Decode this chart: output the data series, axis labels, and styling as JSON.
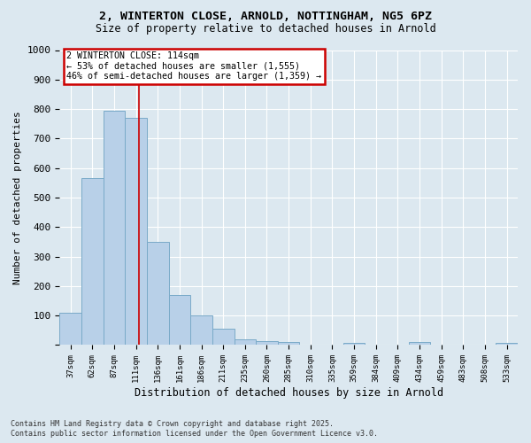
{
  "title_line1": "2, WINTERTON CLOSE, ARNOLD, NOTTINGHAM, NG5 6PZ",
  "title_line2": "Size of property relative to detached houses in Arnold",
  "xlabel": "Distribution of detached houses by size in Arnold",
  "ylabel": "Number of detached properties",
  "categories": [
    "37sqm",
    "62sqm",
    "87sqm",
    "111sqm",
    "136sqm",
    "161sqm",
    "186sqm",
    "211sqm",
    "235sqm",
    "260sqm",
    "285sqm",
    "310sqm",
    "335sqm",
    "359sqm",
    "384sqm",
    "409sqm",
    "434sqm",
    "459sqm",
    "483sqm",
    "508sqm",
    "533sqm"
  ],
  "values": [
    110,
    565,
    795,
    770,
    350,
    170,
    100,
    55,
    18,
    12,
    10,
    0,
    0,
    8,
    0,
    0,
    10,
    0,
    0,
    0,
    8
  ],
  "bar_color": "#b8d0e8",
  "bar_edge_color": "#7aaac8",
  "background_color": "#dce8f0",
  "vline_color": "#cc0000",
  "vline_x": 3.12,
  "annotation_title": "2 WINTERTON CLOSE: 114sqm",
  "annotation_line2": "← 53% of detached houses are smaller (1,555)",
  "annotation_line3": "46% of semi-detached houses are larger (1,359) →",
  "annotation_box_facecolor": "#ffffff",
  "annotation_border_color": "#cc0000",
  "ylim": [
    0,
    1000
  ],
  "yticks": [
    0,
    100,
    200,
    300,
    400,
    500,
    600,
    700,
    800,
    900,
    1000
  ],
  "footnote1": "Contains HM Land Registry data © Crown copyright and database right 2025.",
  "footnote2": "Contains public sector information licensed under the Open Government Licence v3.0."
}
